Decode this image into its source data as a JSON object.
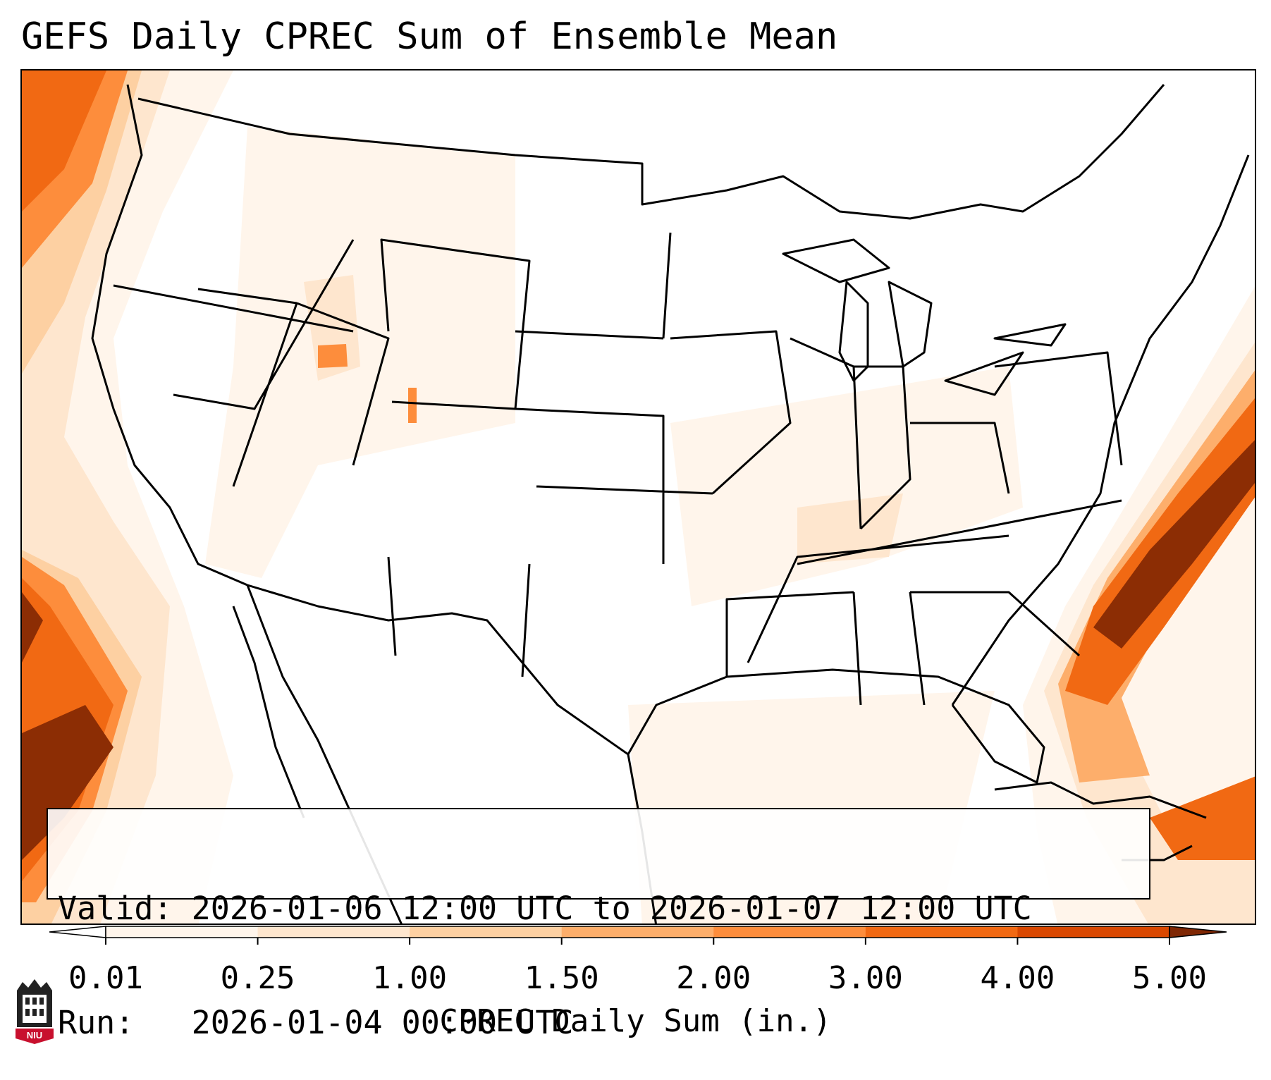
{
  "title": "GEFS Daily CPREC Sum of Ensemble Mean",
  "info": {
    "valid_label": "Valid:",
    "valid_value": "2026-01-06 12:00 UTC to 2026-01-07 12:00 UTC",
    "run_label": "Run:  ",
    "run_value": "2026-01-04 00:00 UTC"
  },
  "colorbar": {
    "label": "CPREC Daily Sum (in.)",
    "ticks": [
      "0.01",
      "0.25",
      "1.00",
      "1.50",
      "2.00",
      "3.00",
      "4.00",
      "5.00"
    ],
    "colors": [
      "#fff5eb",
      "#fee6ce",
      "#fdd0a2",
      "#fdae6b",
      "#fd8d3c",
      "#f16913",
      "#d94801",
      "#8c2d04"
    ],
    "under_color": "#ffffff",
    "over_color": "#7f2704"
  },
  "logo": {
    "text": "NIU",
    "color": "#c8102e"
  }
}
